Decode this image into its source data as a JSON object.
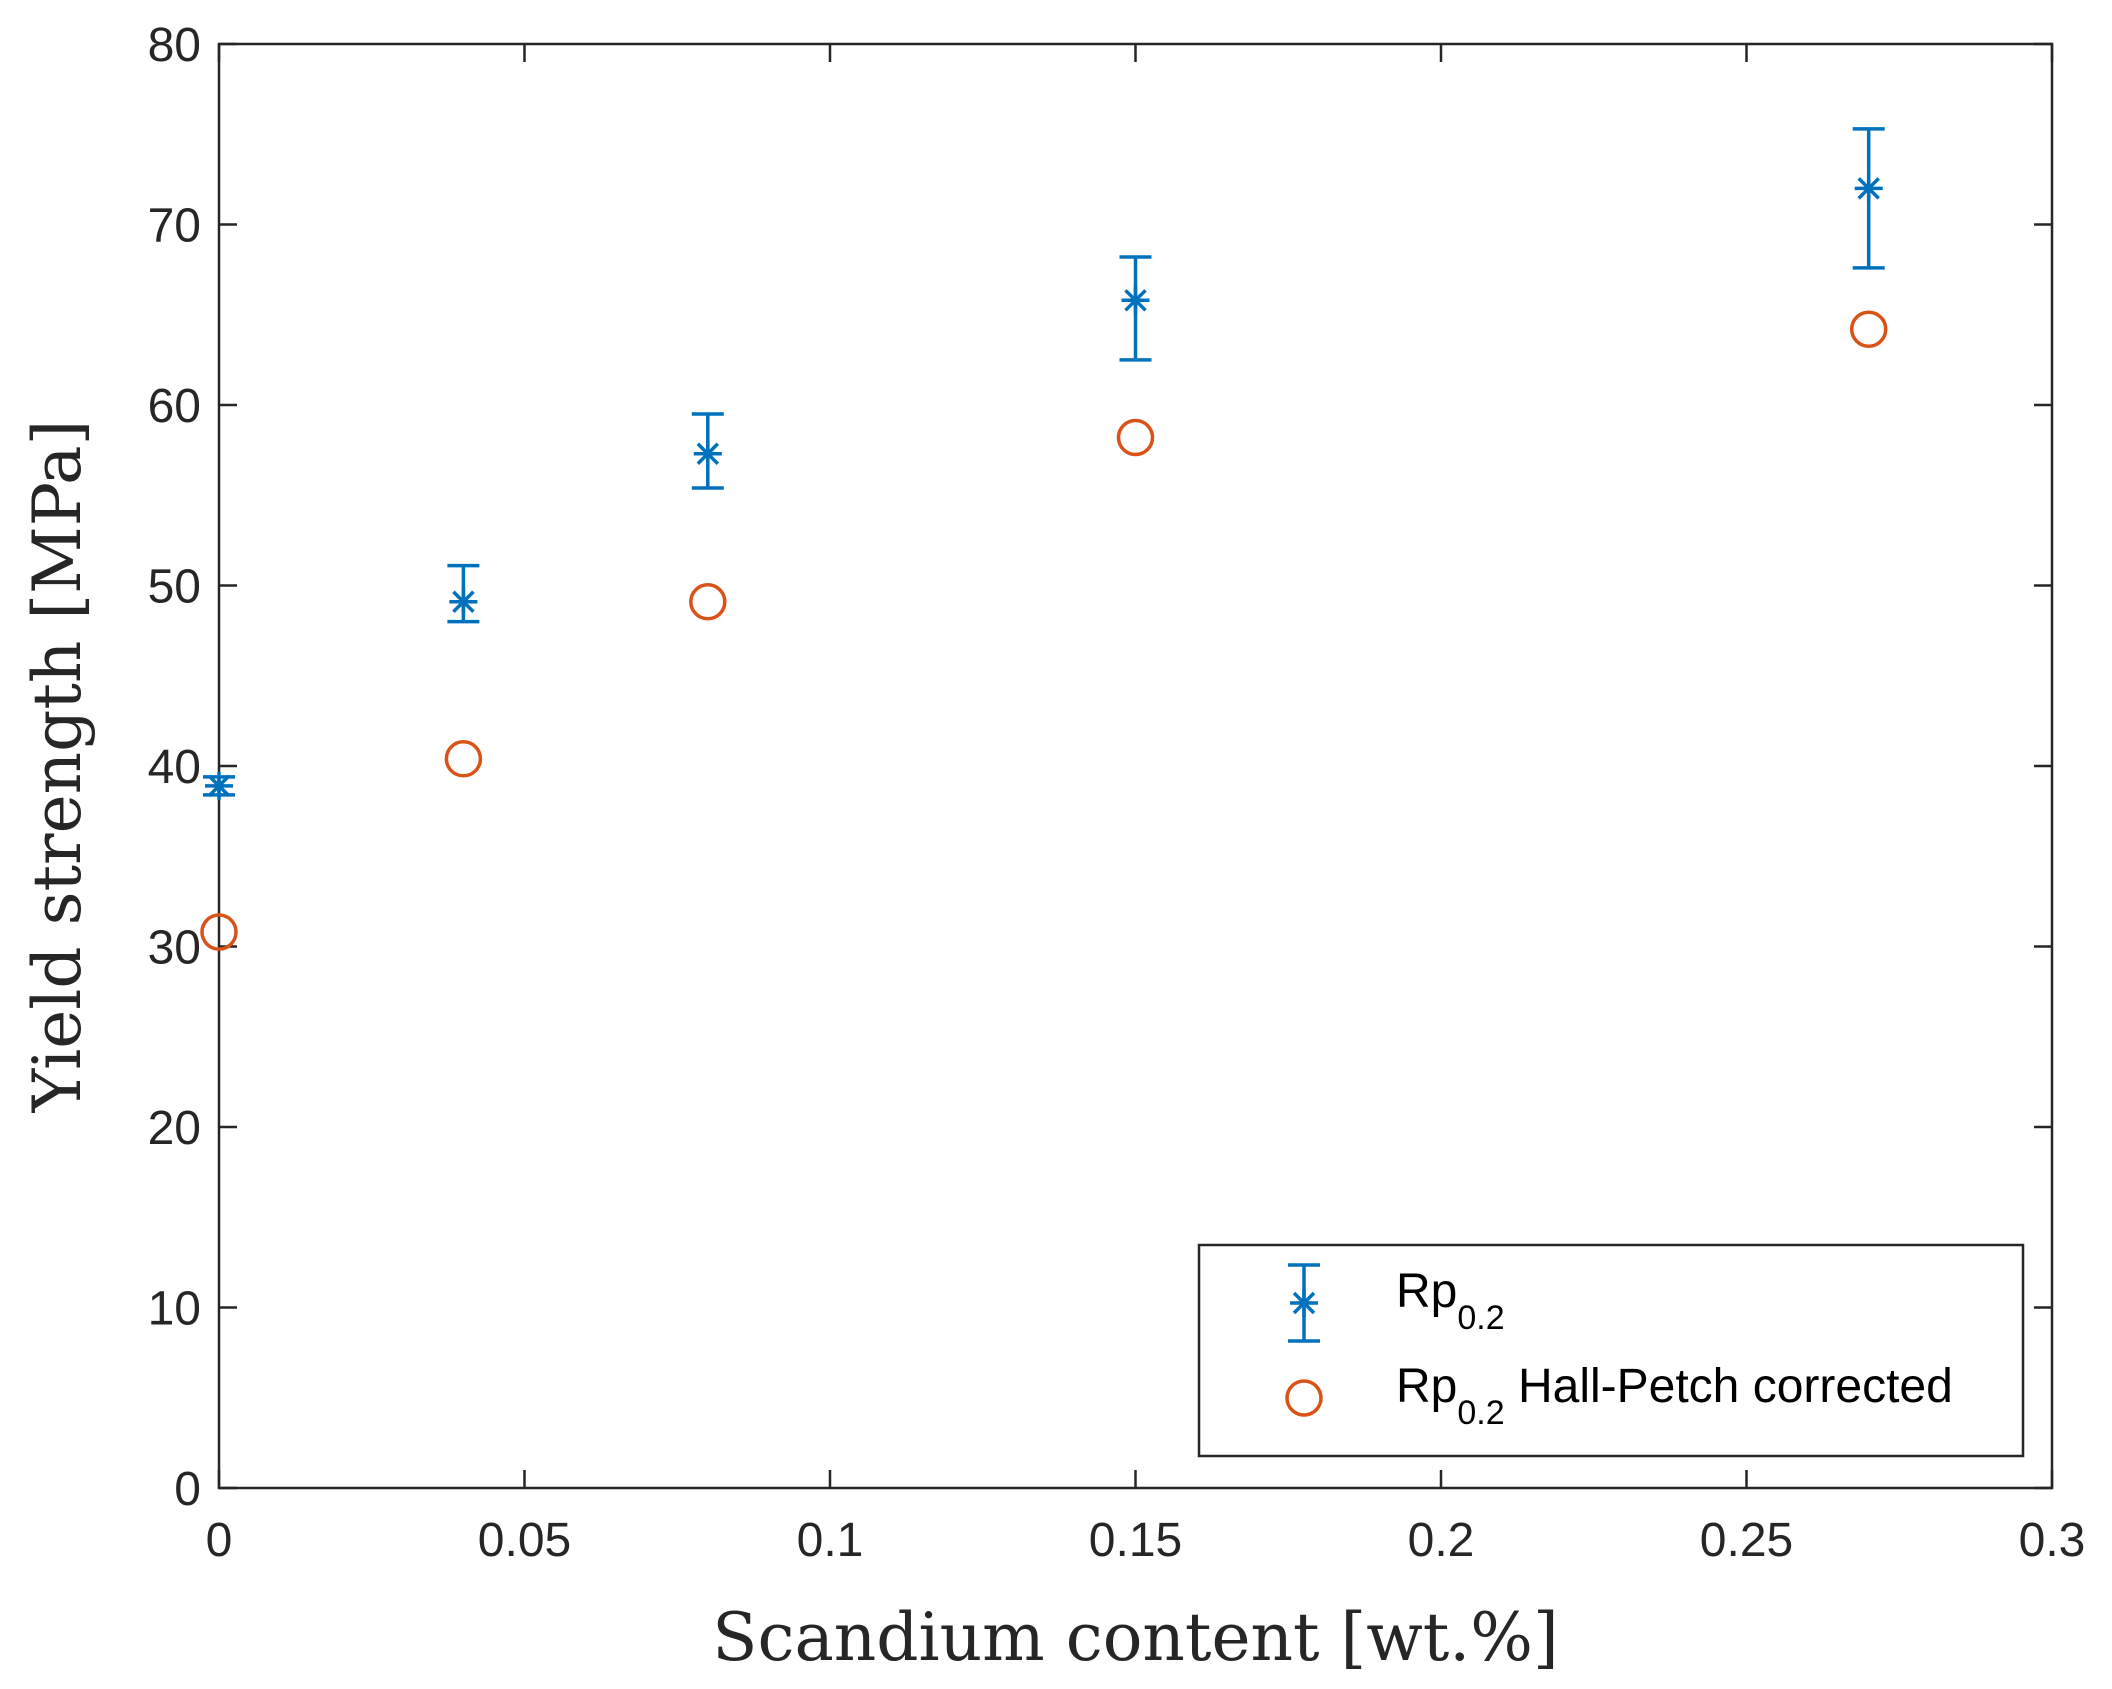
{
  "chart_data": {
    "type": "scatter",
    "title": "",
    "xlabel": "Scandium content [wt.%]",
    "ylabel": "Yield strength [MPa]",
    "xlim": [
      0,
      0.3
    ],
    "ylim": [
      0,
      80
    ],
    "xticks": [
      0,
      0.05,
      0.1,
      0.15,
      0.2,
      0.25,
      0.3
    ],
    "xtick_labels": [
      "0",
      "0.05",
      "0.1",
      "0.15",
      "0.2",
      "0.25",
      "0.3"
    ],
    "yticks": [
      0,
      10,
      20,
      30,
      40,
      50,
      60,
      70,
      80
    ],
    "ytick_labels": [
      "0",
      "10",
      "20",
      "30",
      "40",
      "50",
      "60",
      "70",
      "80"
    ],
    "grid": false,
    "legend_position": "bottom-right",
    "series": [
      {
        "name": "Rp0.2",
        "legend_main": "Rp",
        "legend_sub": "0.2",
        "legend_suffix": "",
        "marker": "asterisk",
        "color": "#0072BD",
        "error_bars": true,
        "x": [
          0,
          0.04,
          0.08,
          0.15,
          0.27
        ],
        "y": [
          38.9,
          49.1,
          57.3,
          65.8,
          72.0
        ],
        "y_lower": [
          38.4,
          48.0,
          55.4,
          62.5,
          67.6
        ],
        "y_upper": [
          39.4,
          51.1,
          59.5,
          68.2,
          75.3
        ]
      },
      {
        "name": "Rp0.2 Hall-Petch corrected",
        "legend_main": "Rp",
        "legend_sub": "0.2",
        "legend_suffix": " Hall-Petch corrected",
        "marker": "circle",
        "color": "#D95319",
        "error_bars": false,
        "x": [
          0,
          0.04,
          0.08,
          0.15,
          0.27
        ],
        "y": [
          30.8,
          40.4,
          49.1,
          58.2,
          64.2
        ]
      }
    ]
  }
}
